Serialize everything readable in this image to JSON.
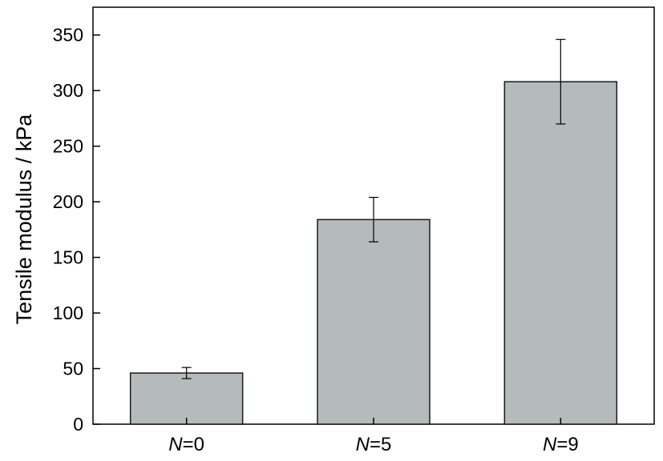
{
  "chart_data": {
    "type": "bar",
    "categories": [
      {
        "var": "N",
        "rest": "=0"
      },
      {
        "var": "N",
        "rest": "=5"
      },
      {
        "var": "N",
        "rest": "=9"
      }
    ],
    "values": [
      46,
      184,
      308
    ],
    "error": [
      5,
      20,
      38
    ],
    "ylabel": "Tensile modulus / kPa",
    "xlabel": "",
    "ylim": [
      0,
      375
    ],
    "yticks": [
      "0",
      "50",
      "100",
      "150",
      "200",
      "250",
      "300",
      "350"
    ],
    "grid": false,
    "bar_color": "#b5babb",
    "edge_color": "#1a1a1a"
  }
}
